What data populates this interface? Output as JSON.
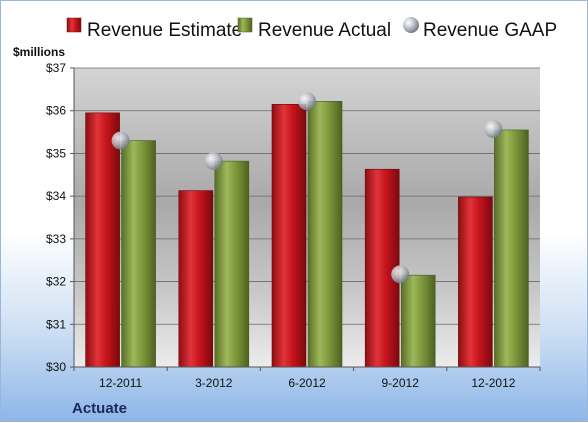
{
  "chart_data": {
    "type": "bar",
    "title": "",
    "company": "Actuate",
    "unit_label": "$millions",
    "categories": [
      "12-2011",
      "3-2012",
      "6-2012",
      "9-2012",
      "12-2012"
    ],
    "series": [
      {
        "name": "Revenue Estimate",
        "kind": "bar",
        "color": "#c8141c",
        "values": [
          35.95,
          34.13,
          36.15,
          34.63,
          33.98
        ]
      },
      {
        "name": "Revenue Actual",
        "kind": "bar",
        "color": "#7f9a3c",
        "values": [
          35.3,
          34.82,
          36.22,
          32.15,
          35.55
        ]
      },
      {
        "name": "Revenue GAAP",
        "kind": "marker",
        "color": "#b8bcc4",
        "values": [
          35.3,
          34.82,
          36.22,
          32.17,
          35.57
        ]
      }
    ],
    "ylim": [
      30,
      37
    ],
    "yticks": [
      "$30",
      "$31",
      "$32",
      "$33",
      "$34",
      "$35",
      "$36",
      "$37"
    ],
    "grid": true,
    "legend_position": "top"
  }
}
